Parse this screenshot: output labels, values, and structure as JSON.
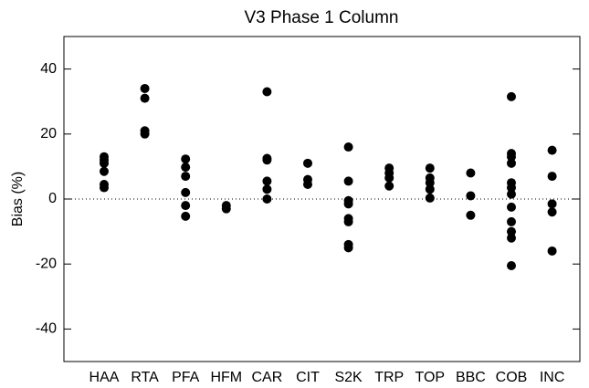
{
  "chart_data": {
    "type": "strip",
    "title": "V3 Phase 1 Column",
    "y_label": "Bias (%)",
    "categories": [
      "HAA",
      "RTA",
      "PFA",
      "HFM",
      "CAR",
      "CIT",
      "S2K",
      "TRP",
      "TOP",
      "BBC",
      "COB",
      "INC"
    ],
    "values": [
      [
        13,
        12,
        11,
        8.5,
        4.5,
        3.5
      ],
      [
        34,
        31,
        21,
        20
      ],
      [
        12.3,
        9.8,
        7,
        2,
        -2,
        -5.3
      ],
      [
        -2,
        -3
      ],
      [
        33,
        12.5,
        12,
        5.5,
        3,
        0
      ],
      [
        11,
        6,
        4.5
      ],
      [
        16,
        5.5,
        -0.5,
        -1.5,
        -6,
        -7,
        -14,
        -15
      ],
      [
        9.5,
        8,
        6.5,
        4
      ],
      [
        9.5,
        6.5,
        5,
        3,
        0.3
      ],
      [
        8,
        1,
        -5
      ],
      [
        31.5,
        14,
        13,
        11,
        5,
        3.5,
        1.5,
        -2.5,
        -7,
        -10,
        -12,
        -20.5
      ],
      [
        15,
        7,
        -1.5,
        -4,
        -16
      ]
    ],
    "color": "#000000",
    "ylim": [
      -50,
      50
    ],
    "yticks": [
      -40,
      -20,
      0,
      20,
      40
    ],
    "zero_line": true
  }
}
